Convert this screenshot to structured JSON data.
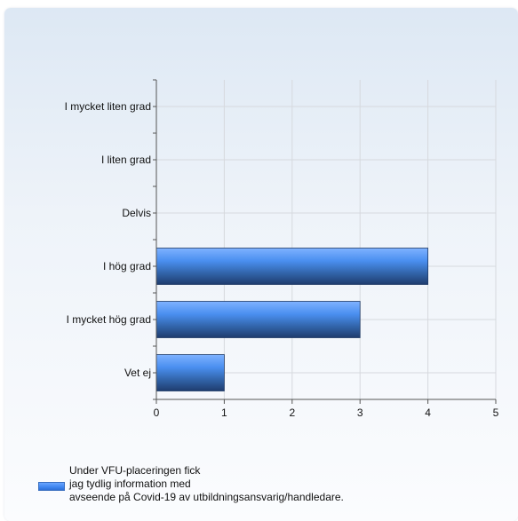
{
  "chart_data": {
    "type": "bar",
    "orientation": "horizontal",
    "categories": [
      "I mycket liten grad",
      "I liten grad",
      "Delvis",
      "I hög grad",
      "I mycket hög grad",
      "Vet ej"
    ],
    "series": [
      {
        "name": "Under VFU-placeringen fick\njag tydlig information med\navseende på Covid-19 av utbildningsansvarig/handledare.",
        "values": [
          0,
          0,
          0,
          4,
          3,
          1
        ],
        "color": "#4a90f0"
      }
    ],
    "xlim": [
      0,
      5
    ],
    "xticks": [
      "0",
      "1",
      "2",
      "3",
      "4",
      "5"
    ],
    "grid": true,
    "legend_position": "bottom-left"
  }
}
